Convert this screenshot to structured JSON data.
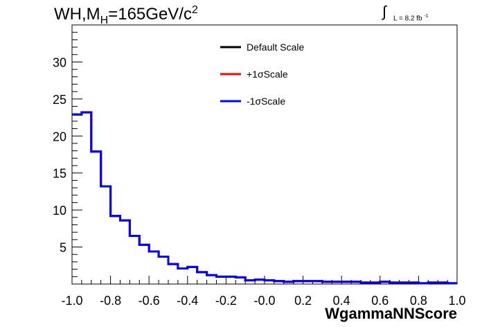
{
  "title_main": "WH,M",
  "title_sub": "H",
  "title_rest": "=165GeV/c",
  "title_sup": "2",
  "lumi": {
    "integral": "∫",
    "text": "L = 8.2 fb",
    "sup": "-1"
  },
  "colors": {
    "default": "#000000",
    "plus": "#ff0000",
    "minus": "#0000ff"
  },
  "chart_data": {
    "type": "line",
    "xlabel": "WgammaNNScore",
    "ylabel": "",
    "xlim": [
      -1.0,
      1.0
    ],
    "ylim": [
      0,
      35
    ],
    "grid": false,
    "legend_placement": "top-center",
    "xticks": [
      "-1.0",
      "-0.8",
      "-0.6",
      "-0.4",
      "-0.2",
      "-0.0",
      "0.2",
      "0.4",
      "0.6",
      "0.8",
      "1.0"
    ],
    "yticks": [
      "5",
      "10",
      "15",
      "20",
      "25",
      "30"
    ],
    "bin_edges": [
      -1.0,
      -0.95,
      -0.9,
      -0.85,
      -0.8,
      -0.75,
      -0.7,
      -0.65,
      -0.6,
      -0.55,
      -0.5,
      -0.45,
      -0.4,
      -0.35,
      -0.3,
      -0.25,
      -0.2,
      -0.15,
      -0.1,
      -0.05,
      0.0,
      0.05,
      0.1,
      0.15,
      0.2,
      0.25,
      0.3,
      0.35,
      0.4,
      0.45,
      0.5,
      0.55,
      0.6,
      0.65,
      0.7,
      0.75,
      0.8,
      0.85,
      0.9,
      0.95,
      1.0
    ],
    "series": [
      {
        "name": "Default Scale",
        "values": [
          22.9,
          23.2,
          17.9,
          13.2,
          9.2,
          8.6,
          6.5,
          5.3,
          4.4,
          3.7,
          2.7,
          2.1,
          2.3,
          1.6,
          1.2,
          1.0,
          1.0,
          0.9,
          0.5,
          0.6,
          0.5,
          0.4,
          0.3,
          0.4,
          0.4,
          0.4,
          0.3,
          0.3,
          0.3,
          0.3,
          0.2,
          0.2,
          0.3,
          0.2,
          0.2,
          0.2,
          0.1,
          0.2,
          0.2,
          0.1
        ]
      },
      {
        "name": "+1σScale",
        "values": [
          22.9,
          23.2,
          17.9,
          13.2,
          9.2,
          8.6,
          6.5,
          5.3,
          4.4,
          3.7,
          2.7,
          2.1,
          2.3,
          1.6,
          1.2,
          1.0,
          1.0,
          0.9,
          0.5,
          0.6,
          0.5,
          0.4,
          0.3,
          0.4,
          0.4,
          0.4,
          0.3,
          0.3,
          0.3,
          0.3,
          0.2,
          0.2,
          0.3,
          0.2,
          0.2,
          0.2,
          0.1,
          0.2,
          0.2,
          0.1
        ]
      },
      {
        "name": "-1σScale",
        "values": [
          22.9,
          23.2,
          17.9,
          13.2,
          9.2,
          8.6,
          6.5,
          5.3,
          4.4,
          3.7,
          2.7,
          2.1,
          2.3,
          1.6,
          1.2,
          1.0,
          1.0,
          0.9,
          0.5,
          0.6,
          0.5,
          0.4,
          0.3,
          0.4,
          0.4,
          0.4,
          0.3,
          0.3,
          0.3,
          0.3,
          0.2,
          0.2,
          0.3,
          0.2,
          0.2,
          0.2,
          0.1,
          0.2,
          0.2,
          0.1
        ]
      }
    ]
  }
}
